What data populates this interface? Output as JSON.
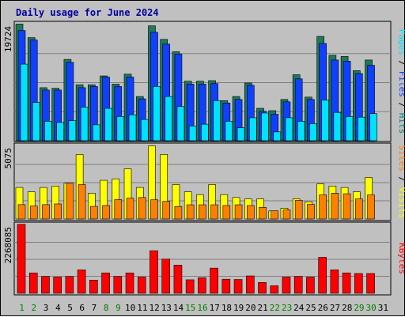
{
  "chart_data": {
    "type": "bar",
    "title": "Daily usage for June 2024",
    "days": [
      "1",
      "2",
      "3",
      "4",
      "5",
      "6",
      "7",
      "8",
      "9",
      "10",
      "11",
      "12",
      "13",
      "14",
      "15",
      "16",
      "17",
      "18",
      "19",
      "20",
      "21",
      "22",
      "23",
      "24",
      "25",
      "26",
      "27",
      "28",
      "29",
      "30",
      "31"
    ],
    "weekend_days": [
      "1",
      "2",
      "8",
      "9",
      "15",
      "16",
      "22",
      "23",
      "29",
      "30"
    ],
    "panels": [
      {
        "name": "pages-files-hits",
        "max_label": "19724",
        "ymax": 19724,
        "label_parts": [
          {
            "text": "Pages",
            "color": "#00e0ff"
          },
          {
            "text": " / ",
            "color": "#000000"
          },
          {
            "text": "Files",
            "color": "#1040ff"
          },
          {
            "text": " / ",
            "color": "#000000"
          },
          {
            "text": "Hits",
            "color": "#008080"
          }
        ],
        "series": [
          {
            "color": "#1c7a58",
            "values": [
              19800,
              17500,
              9000,
              8900,
              13800,
              9500,
              9500,
              11000,
              9600,
              11300,
              7500,
              19500,
              17200,
              15100,
              10100,
              10100,
              10200,
              6800,
              7500,
              9800,
              5500,
              5100,
              7000,
              11200,
              7400,
              17700,
              14500,
              14300,
              11900,
              13700,
              0
            ]
          },
          {
            "color": "#1040ff",
            "values": [
              18700,
              17100,
              8600,
              8600,
              13300,
              9000,
              9200,
              10800,
              9200,
              10800,
              7100,
              18400,
              16400,
              14700,
              9600,
              9600,
              9700,
              6400,
              7000,
              9400,
              5000,
              4500,
              6600,
              10500,
              7000,
              16500,
              13700,
              13500,
              11400,
              12800,
              0
            ]
          },
          {
            "color": "#00e0ff",
            "values": [
              13000,
              6500,
              3300,
              3100,
              3400,
              5700,
              2700,
              5500,
              4100,
              4400,
              3600,
              9200,
              7500,
              5800,
              2500,
              2800,
              6800,
              3300,
              2200,
              3900,
              4700,
              1500,
              3900,
              3300,
              2900,
              6900,
              4800,
              4100,
              4000,
              4600,
              0
            ]
          }
        ]
      },
      {
        "name": "visits-sites",
        "max_label": "5075",
        "ymax": 5075,
        "label_parts": [
          {
            "text": "Sites",
            "color": "#ff8000"
          },
          {
            "text": " / ",
            "color": "#000000"
          },
          {
            "text": "Visits",
            "color": "#ffff00"
          }
        ],
        "series": [
          {
            "color": "#ffff00",
            "values": [
              2200,
              1900,
              2200,
              2300,
              2500,
              4500,
              1800,
              2700,
              2800,
              3500,
              2200,
              5100,
              4500,
              2400,
              1900,
              1700,
              2400,
              1700,
              1500,
              1400,
              1400,
              560,
              750,
              1400,
              1200,
              2450,
              2300,
              2200,
              1900,
              2900,
              0
            ]
          },
          {
            "color": "#ff8000",
            "values": [
              1000,
              900,
              1000,
              1050,
              2500,
              2400,
              880,
              940,
              1350,
              1450,
              1500,
              1340,
              1230,
              870,
              990,
              990,
              990,
              940,
              990,
              940,
              810,
              570,
              630,
              1300,
              1020,
              1680,
              1800,
              1760,
              1400,
              1680,
              0
            ]
          }
        ]
      },
      {
        "name": "kbytes",
        "max_label": "2268085",
        "ymax": 2268085,
        "label_parts": [
          {
            "text": "KBytes",
            "color": "#ff0000"
          }
        ],
        "series": [
          {
            "color": "#ff0000",
            "values": [
              2300000,
              680000,
              560000,
              540000,
              560000,
              780000,
              440000,
              680000,
              560000,
              680000,
              540000,
              1420000,
              1140000,
              940000,
              450000,
              520000,
              840000,
              470000,
              460000,
              580000,
              360000,
              250000,
              540000,
              560000,
              540000,
              1200000,
              780000,
              680000,
              660000,
              660000,
              0
            ]
          }
        ]
      }
    ]
  }
}
